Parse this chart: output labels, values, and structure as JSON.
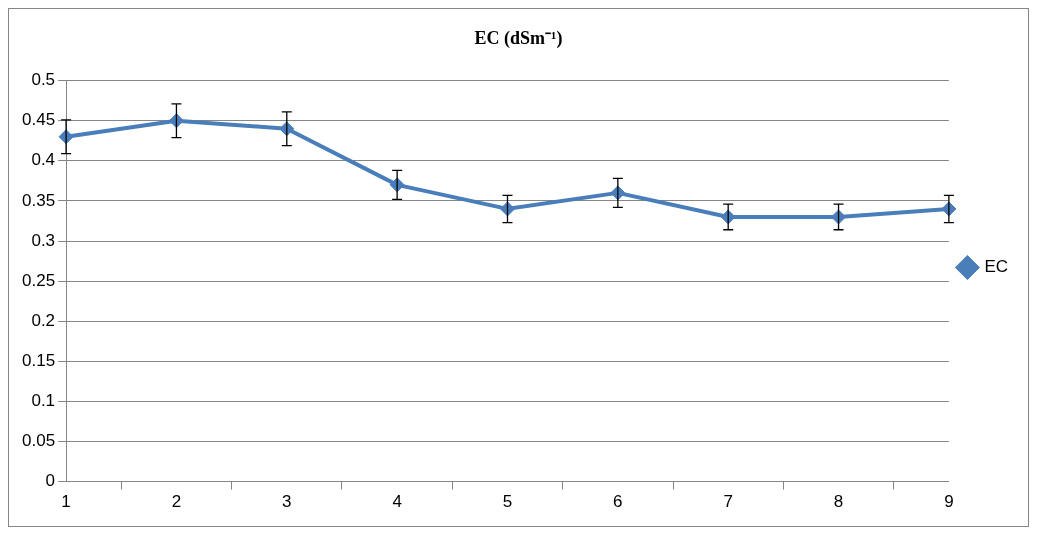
{
  "chart_data": {
    "type": "line",
    "title": "EC (dSm⁻¹)",
    "categories": [
      "1",
      "2",
      "3",
      "4",
      "5",
      "6",
      "7",
      "8",
      "9"
    ],
    "series": [
      {
        "name": "EC",
        "color": "#4a7ebb",
        "values": [
          0.43,
          0.45,
          0.44,
          0.37,
          0.34,
          0.36,
          0.33,
          0.33,
          0.34
        ],
        "errors": [
          0.021,
          0.021,
          0.021,
          0.018,
          0.017,
          0.018,
          0.016,
          0.016,
          0.017
        ]
      }
    ],
    "ylim": [
      0,
      0.5
    ],
    "yticks": [
      0,
      0.05,
      0.1,
      0.15,
      0.2,
      0.25,
      0.3,
      0.35,
      0.4,
      0.45,
      0.5
    ],
    "grid": "y",
    "legend": "right",
    "marker": "diamond",
    "line_style": "solid"
  }
}
